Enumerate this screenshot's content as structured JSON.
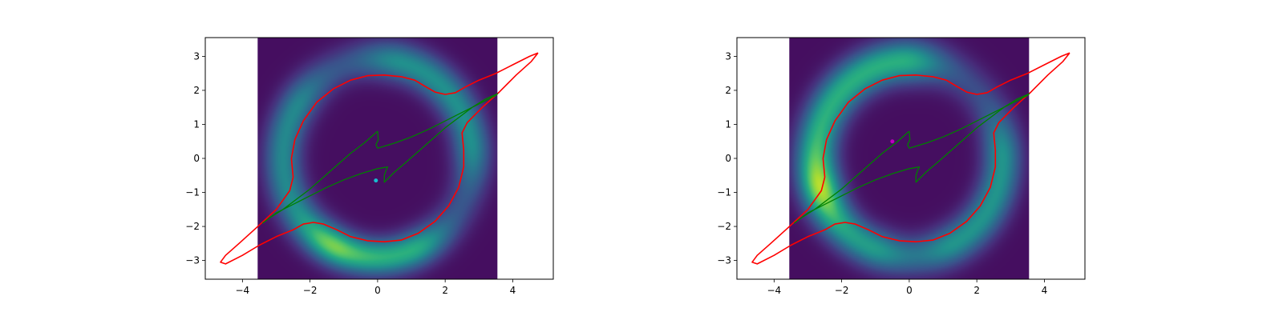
{
  "chart_data": [
    {
      "type": "line",
      "panel": "left",
      "xlim": [
        -5.1,
        5.2
      ],
      "ylim": [
        -3.55,
        3.55
      ],
      "xticks": [
        -4,
        -2,
        0,
        2,
        4
      ],
      "yticks": [
        -3,
        -2,
        -1,
        0,
        1,
        2,
        3
      ],
      "xtick_labels": [
        "−4",
        "−2",
        "0",
        "2",
        "4"
      ],
      "ytick_labels": [
        "−3",
        "−2",
        "−1",
        "0",
        "1",
        "2",
        "3"
      ],
      "image_extent": [
        -3.55,
        3.55,
        -3.55,
        3.55
      ],
      "colormap": "viridis",
      "image_arcs": [
        {
          "cx": 0.0,
          "cy": 0.0,
          "rx": 2.8,
          "ry": 2.9,
          "width": 0.55,
          "a0": 10,
          "a1": 75,
          "peak": 0.28
        },
        {
          "cx": 0.0,
          "cy": 0.0,
          "rx": 2.8,
          "ry": 2.9,
          "width": 0.55,
          "a0": 150,
          "a1": 230,
          "peak": 0.25
        },
        {
          "cx": 0.0,
          "cy": 0.0,
          "rx": 2.8,
          "ry": 2.9,
          "width": 0.5,
          "a0": 250,
          "a1": 290,
          "peak": 0.42
        }
      ],
      "series": [
        {
          "color": "#ff0000",
          "points": [
            [
              4.75,
              3.1
            ],
            [
              4.5,
              3.0
            ],
            [
              4.0,
              2.75
            ],
            [
              3.5,
              2.5
            ],
            [
              3.0,
              2.3
            ],
            [
              2.6,
              2.1
            ],
            [
              2.3,
              1.93
            ],
            [
              2.0,
              1.88
            ],
            [
              1.7,
              1.95
            ],
            [
              1.4,
              2.12
            ],
            [
              1.1,
              2.3
            ],
            [
              0.7,
              2.4
            ],
            [
              0.2,
              2.45
            ],
            [
              -0.3,
              2.43
            ],
            [
              -0.8,
              2.3
            ],
            [
              -1.3,
              2.05
            ],
            [
              -1.8,
              1.65
            ],
            [
              -2.2,
              1.1
            ],
            [
              -2.45,
              0.55
            ],
            [
              -2.55,
              0.0
            ],
            [
              -2.5,
              -0.55
            ],
            [
              -2.6,
              -0.95
            ],
            [
              -3.0,
              -1.5
            ],
            [
              -3.6,
              -2.05
            ],
            [
              -4.1,
              -2.5
            ],
            [
              -4.5,
              -2.85
            ],
            [
              -4.65,
              -3.05
            ],
            [
              -4.5,
              -3.1
            ],
            [
              -4.0,
              -2.85
            ],
            [
              -3.5,
              -2.55
            ],
            [
              -3.0,
              -2.3
            ],
            [
              -2.5,
              -2.1
            ],
            [
              -2.2,
              -1.93
            ],
            [
              -1.9,
              -1.88
            ],
            [
              -1.6,
              -1.93
            ],
            [
              -1.2,
              -2.1
            ],
            [
              -0.8,
              -2.3
            ],
            [
              -0.3,
              -2.42
            ],
            [
              0.2,
              -2.45
            ],
            [
              0.7,
              -2.4
            ],
            [
              1.2,
              -2.2
            ],
            [
              1.7,
              -1.85
            ],
            [
              2.1,
              -1.4
            ],
            [
              2.4,
              -0.85
            ],
            [
              2.55,
              -0.25
            ],
            [
              2.55,
              0.25
            ],
            [
              2.5,
              0.75
            ],
            [
              2.65,
              1.05
            ],
            [
              3.1,
              1.5
            ],
            [
              3.6,
              1.95
            ],
            [
              4.1,
              2.45
            ],
            [
              4.55,
              2.85
            ],
            [
              4.75,
              3.1
            ]
          ]
        },
        {
          "color": "#008000",
          "points": [
            [
              0.0,
              0.8
            ],
            [
              0.02,
              0.55
            ],
            [
              -0.05,
              0.4
            ],
            [
              0.0,
              0.3
            ],
            [
              0.5,
              0.45
            ],
            [
              1.0,
              0.63
            ],
            [
              1.5,
              0.85
            ],
            [
              2.0,
              1.1
            ],
            [
              2.5,
              1.35
            ],
            [
              3.0,
              1.6
            ],
            [
              3.5,
              1.85
            ],
            [
              3.55,
              1.9
            ],
            [
              3.2,
              1.75
            ],
            [
              2.8,
              1.5
            ],
            [
              2.4,
              1.2
            ],
            [
              2.0,
              0.9
            ],
            [
              1.6,
              0.55
            ],
            [
              1.2,
              0.2
            ],
            [
              0.8,
              -0.15
            ],
            [
              0.5,
              -0.4
            ],
            [
              0.2,
              -0.7
            ],
            [
              0.2,
              -0.5
            ],
            [
              0.25,
              -0.35
            ],
            [
              0.3,
              -0.25
            ],
            [
              0.0,
              -0.3
            ],
            [
              -0.5,
              -0.45
            ],
            [
              -1.0,
              -0.63
            ],
            [
              -1.5,
              -0.85
            ],
            [
              -2.0,
              -1.1
            ],
            [
              -2.5,
              -1.35
            ],
            [
              -3.0,
              -1.6
            ],
            [
              -3.4,
              -1.9
            ],
            [
              -3.2,
              -1.75
            ],
            [
              -2.8,
              -1.5
            ],
            [
              -2.4,
              -1.2
            ],
            [
              -2.0,
              -0.9
            ],
            [
              -1.6,
              -0.55
            ],
            [
              -1.2,
              -0.2
            ],
            [
              -0.8,
              0.15
            ],
            [
              -0.4,
              0.45
            ],
            [
              0.0,
              0.8
            ]
          ]
        }
      ],
      "markers": [
        {
          "x": -0.05,
          "y": -0.65,
          "color": "#17becf"
        }
      ]
    },
    {
      "type": "line",
      "panel": "right",
      "xlim": [
        -5.1,
        5.2
      ],
      "ylim": [
        -3.55,
        3.55
      ],
      "xticks": [
        -4,
        -2,
        0,
        2,
        4
      ],
      "yticks": [
        -3,
        -2,
        -1,
        0,
        1,
        2,
        3
      ],
      "xtick_labels": [
        "−4",
        "−2",
        "0",
        "2",
        "4"
      ],
      "ytick_labels": [
        "−3",
        "−2",
        "−1",
        "0",
        "1",
        "2",
        "3"
      ],
      "image_extent": [
        -3.55,
        3.55,
        -3.55,
        3.55
      ],
      "colormap": "viridis",
      "image_arcs": [
        {
          "cx": 0.0,
          "cy": 0.0,
          "rx": 2.75,
          "ry": 2.85,
          "width": 0.6,
          "a0": 95,
          "a1": 190,
          "peak": 0.42
        },
        {
          "cx": 0.0,
          "cy": 0.0,
          "rx": 2.75,
          "ry": 2.85,
          "width": 0.55,
          "a0": 300,
          "a1": 360,
          "peak": 0.3
        },
        {
          "cx": 0.0,
          "cy": 0.0,
          "rx": 2.75,
          "ry": 2.85,
          "width": 0.55,
          "a0": 205,
          "a1": 245,
          "peak": 0.33
        }
      ],
      "series": [
        {
          "color": "#ff0000",
          "points": [
            [
              4.75,
              3.1
            ],
            [
              4.5,
              3.0
            ],
            [
              4.0,
              2.75
            ],
            [
              3.5,
              2.5
            ],
            [
              3.0,
              2.3
            ],
            [
              2.6,
              2.1
            ],
            [
              2.3,
              1.93
            ],
            [
              2.0,
              1.88
            ],
            [
              1.7,
              1.95
            ],
            [
              1.4,
              2.12
            ],
            [
              1.1,
              2.3
            ],
            [
              0.7,
              2.4
            ],
            [
              0.2,
              2.45
            ],
            [
              -0.3,
              2.43
            ],
            [
              -0.8,
              2.3
            ],
            [
              -1.3,
              2.05
            ],
            [
              -1.8,
              1.65
            ],
            [
              -2.2,
              1.1
            ],
            [
              -2.45,
              0.55
            ],
            [
              -2.55,
              0.0
            ],
            [
              -2.5,
              -0.55
            ],
            [
              -2.6,
              -0.95
            ],
            [
              -3.0,
              -1.5
            ],
            [
              -3.6,
              -2.05
            ],
            [
              -4.1,
              -2.5
            ],
            [
              -4.5,
              -2.85
            ],
            [
              -4.65,
              -3.05
            ],
            [
              -4.5,
              -3.1
            ],
            [
              -4.0,
              -2.85
            ],
            [
              -3.5,
              -2.55
            ],
            [
              -3.0,
              -2.3
            ],
            [
              -2.5,
              -2.1
            ],
            [
              -2.2,
              -1.93
            ],
            [
              -1.9,
              -1.88
            ],
            [
              -1.6,
              -1.93
            ],
            [
              -1.2,
              -2.1
            ],
            [
              -0.8,
              -2.3
            ],
            [
              -0.3,
              -2.42
            ],
            [
              0.2,
              -2.45
            ],
            [
              0.7,
              -2.4
            ],
            [
              1.2,
              -2.2
            ],
            [
              1.7,
              -1.85
            ],
            [
              2.1,
              -1.4
            ],
            [
              2.4,
              -0.85
            ],
            [
              2.55,
              -0.25
            ],
            [
              2.55,
              0.25
            ],
            [
              2.5,
              0.75
            ],
            [
              2.65,
              1.05
            ],
            [
              3.1,
              1.5
            ],
            [
              3.6,
              1.95
            ],
            [
              4.1,
              2.45
            ],
            [
              4.55,
              2.85
            ],
            [
              4.75,
              3.1
            ]
          ]
        },
        {
          "color": "#008000",
          "points": [
            [
              0.0,
              0.8
            ],
            [
              0.02,
              0.55
            ],
            [
              -0.05,
              0.4
            ],
            [
              0.0,
              0.3
            ],
            [
              0.5,
              0.45
            ],
            [
              1.0,
              0.63
            ],
            [
              1.5,
              0.85
            ],
            [
              2.0,
              1.1
            ],
            [
              2.5,
              1.35
            ],
            [
              3.0,
              1.6
            ],
            [
              3.5,
              1.85
            ],
            [
              3.55,
              1.9
            ],
            [
              3.2,
              1.75
            ],
            [
              2.8,
              1.5
            ],
            [
              2.4,
              1.2
            ],
            [
              2.0,
              0.9
            ],
            [
              1.6,
              0.55
            ],
            [
              1.2,
              0.2
            ],
            [
              0.8,
              -0.15
            ],
            [
              0.5,
              -0.4
            ],
            [
              0.2,
              -0.7
            ],
            [
              0.2,
              -0.5
            ],
            [
              0.25,
              -0.35
            ],
            [
              0.3,
              -0.25
            ],
            [
              0.0,
              -0.3
            ],
            [
              -0.5,
              -0.45
            ],
            [
              -1.0,
              -0.63
            ],
            [
              -1.5,
              -0.85
            ],
            [
              -2.0,
              -1.1
            ],
            [
              -2.5,
              -1.35
            ],
            [
              -3.0,
              -1.6
            ],
            [
              -3.4,
              -1.9
            ],
            [
              -3.2,
              -1.75
            ],
            [
              -2.8,
              -1.5
            ],
            [
              -2.4,
              -1.2
            ],
            [
              -2.0,
              -0.9
            ],
            [
              -1.6,
              -0.55
            ],
            [
              -1.2,
              -0.2
            ],
            [
              -0.8,
              0.15
            ],
            [
              -0.4,
              0.45
            ],
            [
              0.0,
              0.8
            ]
          ]
        }
      ],
      "markers": [
        {
          "x": -0.5,
          "y": 0.5,
          "color": "#bf00bf"
        }
      ]
    }
  ]
}
